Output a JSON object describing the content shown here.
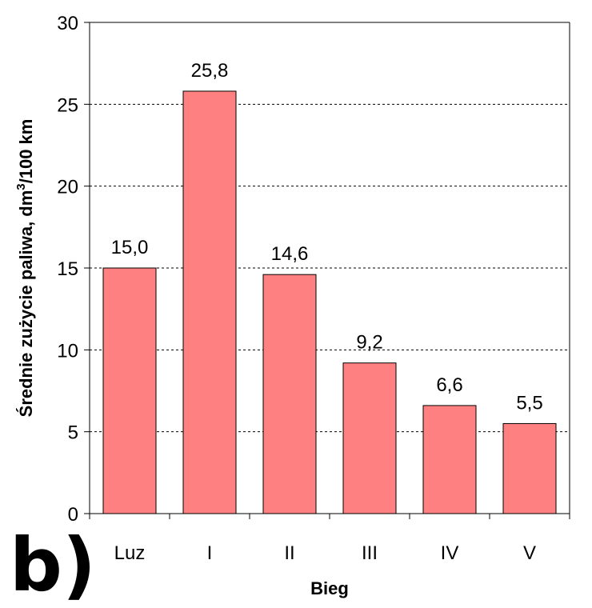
{
  "chart_data": {
    "type": "bar",
    "panel_label": "b)",
    "categories": [
      "Luz",
      "I",
      "II",
      "III",
      "IV",
      "V"
    ],
    "values": [
      15.0,
      25.8,
      14.6,
      9.2,
      6.6,
      5.5
    ],
    "data_labels": [
      "15,0",
      "25,8",
      "14,6",
      "9,2",
      "6,6",
      "5,5"
    ],
    "xlabel": "Bieg",
    "ylabel_main": "Średnie zużycie paliwa, dm",
    "ylabel_sup": "3",
    "ylabel_tail": "/100 km",
    "ylim": [
      0,
      30
    ],
    "yticks": [
      0,
      5,
      10,
      15,
      20,
      25,
      30
    ],
    "ytick_labels": [
      "0",
      "5",
      "10",
      "15",
      "20",
      "25",
      "30"
    ],
    "grid": "horizontal dashed",
    "bar_color": "#ff8080",
    "bar_edge_color": "#000000"
  }
}
